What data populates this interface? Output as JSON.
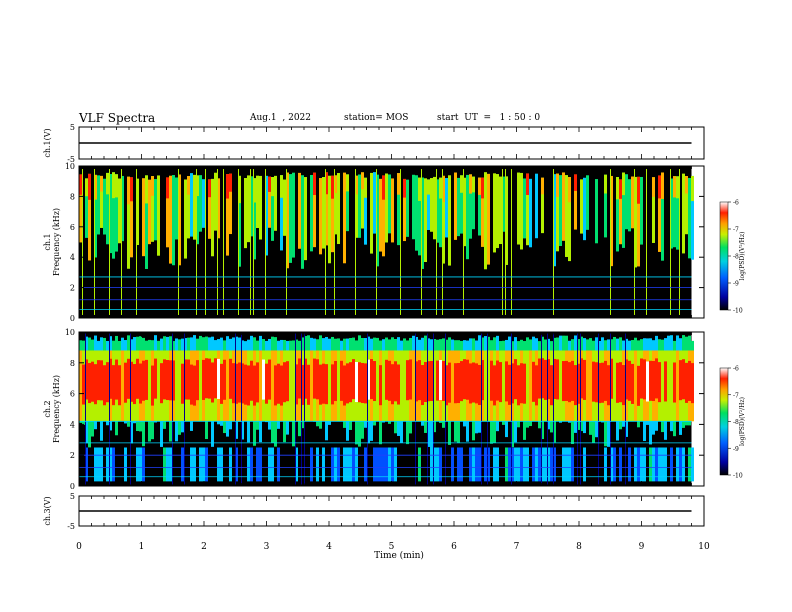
{
  "header": {
    "title": "VLF Spectra",
    "date": "Aug.1  , 2022",
    "station": "station= MOS",
    "start_ut": "start  UT  =   1 : 50 : 0"
  },
  "chart_data": [
    {
      "type": "line",
      "name": "ch1-voltage",
      "ylabel": "ch.1(V)",
      "ylim": [
        -5,
        5
      ],
      "yticks": [
        "5",
        "-5"
      ],
      "x": [
        0,
        9.8
      ],
      "values": [
        0,
        0
      ]
    },
    {
      "type": "heatmap",
      "name": "ch1-spectrogram",
      "ylabel": "ch.1\nFrequency (kHz)",
      "ylim": [
        0,
        10
      ],
      "yticks": [
        "0",
        "2",
        "4",
        "6",
        "8",
        "10"
      ],
      "xlim": [
        0,
        10
      ],
      "data_x_max": 9.8,
      "colorbar": {
        "label": "log(PSD)(V²/Hz)",
        "range": [
          -10,
          -6
        ],
        "ticks": [
          "-6",
          "-7",
          "-8",
          "-9",
          "-10"
        ]
      }
    },
    {
      "type": "heatmap",
      "name": "ch2-spectrogram",
      "ylabel": "ch.2\nFrequency (kHz)",
      "ylim": [
        0,
        10
      ],
      "yticks": [
        "0",
        "2",
        "4",
        "6",
        "8",
        "10"
      ],
      "xlim": [
        0,
        10
      ],
      "data_x_max": 9.8,
      "colorbar": {
        "label": "log(PSD)(V²/Hz)",
        "range": [
          -10,
          -6
        ],
        "ticks": [
          "-6",
          "-7",
          "-8",
          "-9",
          "-10"
        ]
      }
    },
    {
      "type": "line",
      "name": "ch3-voltage",
      "ylabel": "ch.3(V)",
      "ylim": [
        -5,
        5
      ],
      "yticks": [
        "5",
        "-5"
      ],
      "x": [
        0,
        9.8
      ],
      "values": [
        0,
        0
      ]
    }
  ],
  "x_axis": {
    "label": "Time  (min)",
    "ticks": [
      "0",
      "1",
      "2",
      "3",
      "4",
      "5",
      "6",
      "7",
      "8",
      "9",
      "10"
    ]
  },
  "colors": {
    "background": "#ffffff",
    "spectrogram_floor": "#000000",
    "colormap": [
      "#00008c",
      "#0050ff",
      "#00c8ff",
      "#00e070",
      "#b4f000",
      "#ffb000",
      "#ff2000",
      "#ffffff"
    ]
  }
}
